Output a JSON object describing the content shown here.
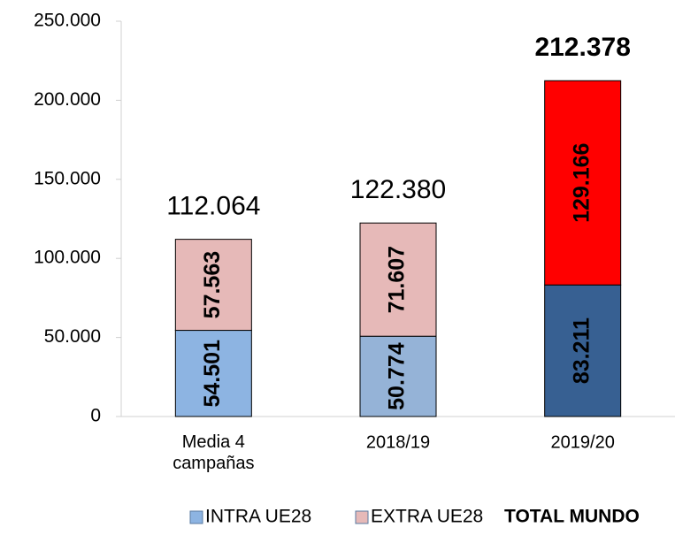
{
  "chart_data": {
    "type": "stacked_bar",
    "categories": [
      "Media 4 campañas",
      "2018/19",
      "2019/20"
    ],
    "series": [
      {
        "name": "INTRA UE28",
        "color": "#8DB4E2",
        "colors": [
          "#8DB4E2",
          "#95B3D7",
          "#376092"
        ],
        "values": [
          54501,
          50774,
          83211
        ],
        "value_labels": [
          "54.501",
          "50.774",
          "83.211"
        ],
        "label_colors": [
          "#000000",
          "#000000",
          "#FFFFFF"
        ]
      },
      {
        "name": "EXTRA UE28",
        "color": "#E6B9B8",
        "colors": [
          "#E6B9B8",
          "#E6B9B8",
          "#FF0000"
        ],
        "values": [
          57563,
          71607,
          129166
        ],
        "value_labels": [
          "57.563",
          "71.607",
          "129.166"
        ],
        "label_colors": [
          "#000000",
          "#000000",
          "#FFFFFF"
        ]
      }
    ],
    "totals": {
      "name": "TOTAL MUNDO",
      "values": [
        112064,
        122380,
        212378
      ],
      "value_labels": [
        "112.064",
        "122.380",
        "212.378"
      ],
      "label_bold": [
        false,
        false,
        true
      ]
    },
    "ylim": [
      0,
      250000
    ],
    "yticks": [
      0,
      {
        "value": 50000,
        "label": "50.000"
      },
      {
        "value": 100000,
        "label": "100.000"
      },
      {
        "value": 150000,
        "label": "150.000"
      },
      {
        "value": 200000,
        "label": "200.000"
      },
      {
        "value": 250000,
        "label": "250.000"
      }
    ],
    "grid": false,
    "legend": "bottom"
  }
}
